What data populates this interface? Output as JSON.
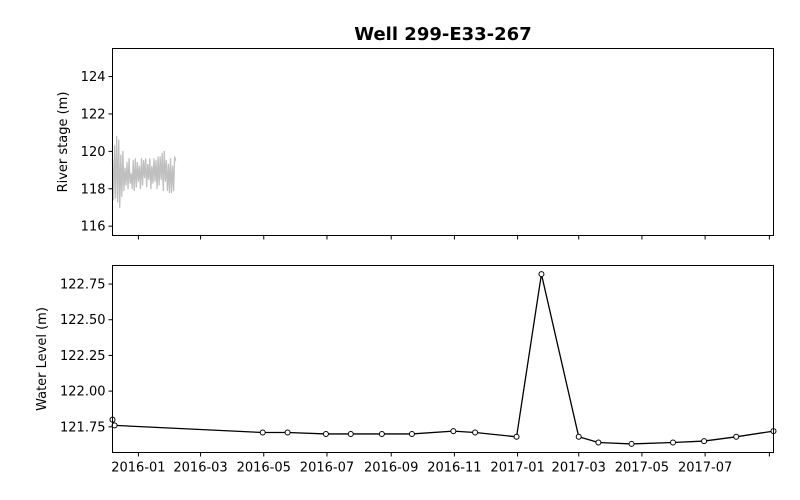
{
  "title": "Well 299-E33-267",
  "chart_data": [
    {
      "type": "line",
      "panel": "top",
      "ylabel": "River stage (m)",
      "xlim": [
        "2015-12-07",
        "2017-09-05"
      ],
      "ylim": [
        115.5,
        125.5
      ],
      "yticks": [
        116,
        118,
        120,
        122,
        124
      ],
      "show_xtick_labels": false,
      "grid": false,
      "series": [
        {
          "color": "#bfbfbf",
          "x": [
            "2015-12-07",
            "2015-12-08",
            "2015-12-09",
            "2015-12-10",
            "2015-12-11",
            "2015-12-12",
            "2015-12-13",
            "2015-12-14",
            "2015-12-15",
            "2015-12-16",
            "2015-12-17",
            "2015-12-18",
            "2015-12-19",
            "2015-12-20",
            "2015-12-21",
            "2015-12-22",
            "2015-12-23",
            "2015-12-24",
            "2015-12-25",
            "2015-12-26",
            "2015-12-27",
            "2015-12-28",
            "2015-12-29",
            "2015-12-30",
            "2015-12-31",
            "2016-01-01",
            "2016-01-02",
            "2016-01-03",
            "2016-01-04",
            "2016-01-05",
            "2016-01-06",
            "2016-01-07",
            "2016-01-08",
            "2016-01-09",
            "2016-01-10",
            "2016-01-11",
            "2016-01-12",
            "2016-01-13",
            "2016-01-14",
            "2016-01-15",
            "2016-01-16",
            "2016-01-17",
            "2016-01-18",
            "2016-01-19",
            "2016-01-20",
            "2016-01-21",
            "2016-01-22",
            "2016-01-23",
            "2016-01-24",
            "2016-01-25",
            "2016-01-26",
            "2016-01-27",
            "2016-01-28",
            "2016-01-29",
            "2016-01-30",
            "2016-01-31",
            "2016-02-01",
            "2016-02-02",
            "2016-02-03",
            "2016-02-04",
            "2016-02-05",
            "2016-02-06"
          ],
          "y": [
            119.6,
            117.4,
            120.3,
            117.5,
            120.8,
            117.3,
            120.6,
            117.0,
            119.8,
            117.6,
            120.0,
            117.9,
            119.1,
            118.2,
            119.4,
            118.0,
            119.6,
            118.3,
            118.8,
            118.0,
            119.5,
            117.9,
            119.6,
            118.1,
            119.4,
            118.4,
            119.2,
            118.0,
            119.6,
            118.2,
            119.5,
            118.6,
            119.6,
            118.1,
            119.3,
            118.5,
            119.6,
            118.0,
            119.2,
            118.3,
            119.6,
            118.4,
            119.5,
            118.0,
            119.7,
            118.2,
            119.7,
            118.5,
            119.9,
            117.9,
            120.0,
            118.4,
            119.5,
            117.9,
            119.3,
            117.8,
            119.6,
            117.8,
            119.2,
            117.9,
            119.7,
            119.5
          ]
        }
      ]
    },
    {
      "type": "line",
      "panel": "bottom",
      "ylabel": "Water Level (m)",
      "xlim": [
        "2015-12-07",
        "2017-09-05"
      ],
      "ylim": [
        121.57,
        122.88
      ],
      "yticks": [
        121.75,
        122.0,
        122.25,
        122.5,
        122.75
      ],
      "ytick_labels": [
        "121.75",
        "122.00",
        "122.25",
        "122.50",
        "122.75"
      ],
      "xticks": [
        "2016-01-01",
        "2016-03-01",
        "2016-05-01",
        "2016-07-01",
        "2016-09-01",
        "2016-11-01",
        "2017-01-01",
        "2017-03-01",
        "2017-05-01",
        "2017-07-01"
      ],
      "xtick_labels": [
        "2016-01",
        "2016-03",
        "2016-05",
        "2016-07",
        "2016-09",
        "2016-11",
        "2017-01",
        "2017-03",
        "2017-05",
        "2017-07"
      ],
      "extra_xticks": [
        "2017-09-01"
      ],
      "grid": false,
      "series": [
        {
          "color": "#000000",
          "marker": "circle-open",
          "x": [
            "2015-12-07",
            "2015-12-09",
            "2016-04-30",
            "2016-05-24",
            "2016-06-30",
            "2016-07-24",
            "2016-08-23",
            "2016-09-21",
            "2016-10-31",
            "2016-11-21",
            "2016-12-31",
            "2017-01-24",
            "2017-03-01",
            "2017-03-20",
            "2017-04-21",
            "2017-05-31",
            "2017-06-30",
            "2017-07-31",
            "2017-09-05"
          ],
          "y": [
            121.8,
            121.76,
            121.71,
            121.71,
            121.7,
            121.7,
            121.7,
            121.7,
            121.72,
            121.71,
            121.68,
            122.82,
            121.68,
            121.64,
            121.63,
            121.64,
            121.65,
            121.68,
            121.72
          ]
        }
      ]
    }
  ]
}
